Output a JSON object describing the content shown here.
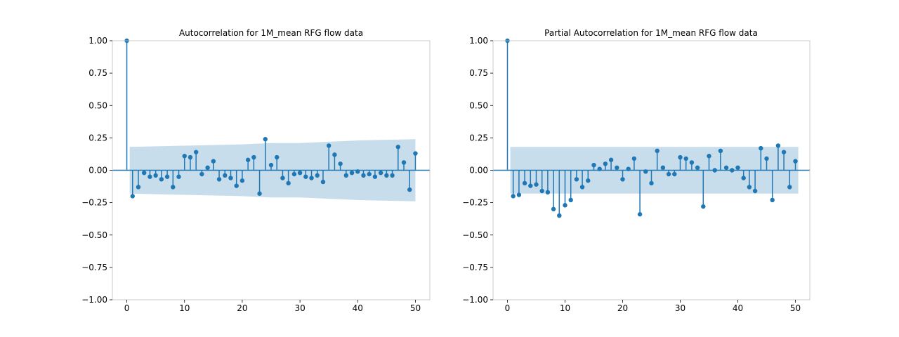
{
  "colors": {
    "stem": "#1f77b4",
    "confidence_band": "#1f77b4",
    "axis": "#000000"
  },
  "chart_data": [
    {
      "type": "stem",
      "title": "Autocorrelation for 1M_mean RFG flow data",
      "xlabel": "",
      "ylabel": "",
      "xlim": [
        -2.5,
        52.5
      ],
      "ylim": [
        -1.0,
        1.0
      ],
      "x_ticks": [
        0,
        10,
        20,
        30,
        40,
        50
      ],
      "y_ticks": [
        -1.0,
        -0.75,
        -0.5,
        -0.25,
        0.0,
        0.25,
        0.5,
        0.75,
        1.0
      ],
      "y_tick_labels": [
        "−1.00",
        "−0.75",
        "−0.50",
        "−0.25",
        "0.00",
        "0.25",
        "0.50",
        "0.75",
        "1.00"
      ],
      "x_tick_labels": [
        "0",
        "10",
        "20",
        "30",
        "40",
        "50"
      ],
      "grid": false,
      "lags": [
        0,
        1,
        2,
        3,
        4,
        5,
        6,
        7,
        8,
        9,
        10,
        11,
        12,
        13,
        14,
        15,
        16,
        17,
        18,
        19,
        20,
        21,
        22,
        23,
        24,
        25,
        26,
        27,
        28,
        29,
        30,
        31,
        32,
        33,
        34,
        35,
        36,
        37,
        38,
        39,
        40,
        41,
        42,
        43,
        44,
        45,
        46,
        47,
        48,
        49,
        50
      ],
      "values": [
        1.0,
        -0.2,
        -0.13,
        -0.02,
        -0.05,
        -0.04,
        -0.07,
        -0.05,
        -0.13,
        -0.05,
        0.11,
        0.1,
        0.14,
        -0.03,
        0.02,
        0.07,
        -0.07,
        -0.04,
        -0.06,
        -0.12,
        -0.08,
        0.08,
        0.1,
        -0.18,
        0.24,
        0.04,
        0.1,
        -0.06,
        -0.1,
        -0.03,
        -0.02,
        -0.05,
        -0.06,
        -0.04,
        -0.09,
        0.19,
        0.12,
        0.05,
        -0.04,
        -0.02,
        -0.01,
        -0.04,
        -0.03,
        -0.05,
        -0.02,
        -0.04,
        -0.04,
        0.18,
        0.06,
        -0.15,
        0.13
      ],
      "confidence_band": {
        "lags": [
          0.5,
          10,
          20,
          25,
          30,
          35,
          40,
          45,
          50
        ],
        "upper": [
          0.18,
          0.19,
          0.2,
          0.21,
          0.21,
          0.22,
          0.23,
          0.235,
          0.24
        ],
        "lower": [
          -0.18,
          -0.19,
          -0.2,
          -0.21,
          -0.21,
          -0.22,
          -0.23,
          -0.235,
          -0.24
        ]
      }
    },
    {
      "type": "stem",
      "title": "Partial Autocorrelation for 1M_mean RFG flow data",
      "xlabel": "",
      "ylabel": "",
      "xlim": [
        -2.5,
        52.5
      ],
      "ylim": [
        -1.0,
        1.0
      ],
      "x_ticks": [
        0,
        10,
        20,
        30,
        40,
        50
      ],
      "y_ticks": [
        -1.0,
        -0.75,
        -0.5,
        -0.25,
        0.0,
        0.25,
        0.5,
        0.75,
        1.0
      ],
      "y_tick_labels": [
        "−1.00",
        "−0.75",
        "−0.50",
        "−0.25",
        "0.00",
        "0.25",
        "0.50",
        "0.75",
        "1.00"
      ],
      "x_tick_labels": [
        "0",
        "10",
        "20",
        "30",
        "40",
        "50"
      ],
      "grid": false,
      "lags": [
        0,
        1,
        2,
        3,
        4,
        5,
        6,
        7,
        8,
        9,
        10,
        11,
        12,
        13,
        14,
        15,
        16,
        17,
        18,
        19,
        20,
        21,
        22,
        23,
        24,
        25,
        26,
        27,
        28,
        29,
        30,
        31,
        32,
        33,
        34,
        35,
        36,
        37,
        38,
        39,
        40,
        41,
        42,
        43,
        44,
        45,
        46,
        47,
        48,
        49,
        50
      ],
      "values": [
        1.0,
        -0.2,
        -0.19,
        -0.1,
        -0.12,
        -0.11,
        -0.16,
        -0.17,
        -0.3,
        -0.35,
        -0.27,
        -0.23,
        -0.07,
        -0.13,
        -0.08,
        0.04,
        0.01,
        0.05,
        0.08,
        0.02,
        -0.07,
        0.01,
        0.09,
        -0.34,
        -0.01,
        -0.1,
        0.15,
        0.02,
        -0.03,
        -0.03,
        0.1,
        0.09,
        0.06,
        0.02,
        -0.28,
        0.11,
        0.0,
        0.15,
        0.02,
        0.0,
        0.02,
        -0.06,
        -0.13,
        -0.16,
        0.17,
        0.09,
        -0.23,
        0.19,
        0.14,
        -0.13,
        0.07
      ],
      "confidence_band": {
        "lags": [
          0.5,
          50.5
        ],
        "upper": [
          0.18,
          0.18
        ],
        "lower": [
          -0.18,
          -0.18
        ]
      }
    }
  ]
}
